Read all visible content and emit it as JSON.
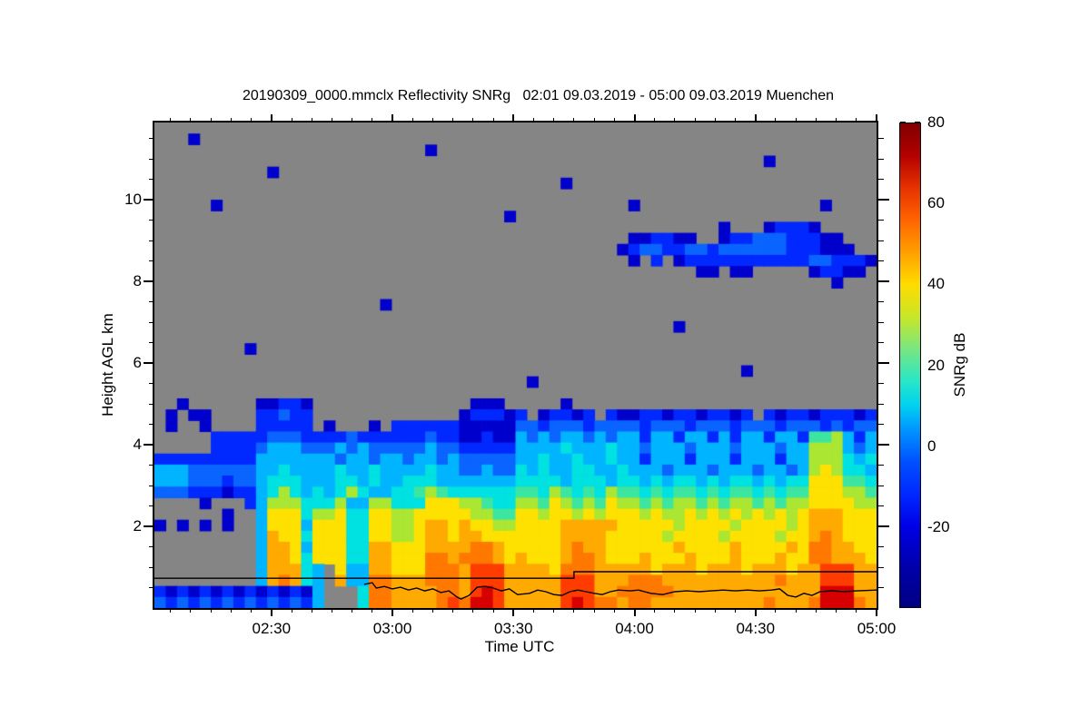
{
  "title": "20190309_0000.mmclx Reflectivity SNRg   02:01 09.03.2019 - 05:00 09.03.2019 Muenchen",
  "site": "Muenchen",
  "time_start": "02:01 09.03.2019",
  "time_end": "05:00 09.03.2019",
  "axes": {
    "x": {
      "label": "Time UTC",
      "ticks": [
        {
          "label": "02:30",
          "minute": 29
        },
        {
          "label": "03:00",
          "minute": 59
        },
        {
          "label": "03:30",
          "minute": 89
        },
        {
          "label": "04:00",
          "minute": 119
        },
        {
          "label": "04:30",
          "minute": 149
        },
        {
          "label": "05:00",
          "minute": 179
        }
      ],
      "total_minutes": 179,
      "minor_step_minutes": 5,
      "first_minor_minute": 4
    },
    "y": {
      "label": "Height AGL km",
      "ticks": [
        2,
        4,
        6,
        8,
        10
      ],
      "range_km": [
        0,
        11.9
      ],
      "minor_step_km": 0.5
    }
  },
  "colorbar": {
    "label": "SNRg dB",
    "tick_labels": [
      "80",
      "60",
      "40",
      "20",
      "0",
      "-20"
    ],
    "tick_values": [
      80,
      60,
      40,
      20,
      0,
      -20
    ],
    "minor_tick_values": [
      70,
      50,
      30,
      10,
      -10,
      -30
    ],
    "range": [
      -40,
      80
    ],
    "gradient": [
      {
        "v": 80,
        "c": "#800000"
      },
      {
        "v": 72,
        "c": "#b40000"
      },
      {
        "v": 64,
        "c": "#e63200"
      },
      {
        "v": 56,
        "c": "#ff6400"
      },
      {
        "v": 48,
        "c": "#ffa000"
      },
      {
        "v": 40,
        "c": "#ffdc00"
      },
      {
        "v": 32,
        "c": "#c8e628"
      },
      {
        "v": 24,
        "c": "#78e682"
      },
      {
        "v": 16,
        "c": "#28e6c8"
      },
      {
        "v": 10,
        "c": "#00d2f0"
      },
      {
        "v": 4,
        "c": "#0096ff"
      },
      {
        "v": -4,
        "c": "#0050ff"
      },
      {
        "v": -12,
        "c": "#0028ff"
      },
      {
        "v": -20,
        "c": "#0000e6"
      },
      {
        "v": -30,
        "c": "#0000aa"
      },
      {
        "v": -40,
        "c": "#000082"
      }
    ]
  },
  "plot": {
    "background": "#858585",
    "frame_color": "#000000"
  },
  "chart_data": {
    "type": "heatmap",
    "variable": "Reflectivity SNRg",
    "value_units": "dB",
    "x_start": "02:01",
    "x_end": "05:00",
    "x_total_minutes": 179,
    "y_range_km": [
      0,
      11.9
    ],
    "no_data_char": ".",
    "palette": {
      ".": {
        "color": "#858585",
        "db": null,
        "label": "no signal"
      },
      "0": {
        "color": "#000080",
        "db": -35
      },
      "1": {
        "color": "#0000cd",
        "db": -25
      },
      "2": {
        "color": "#0028ff",
        "db": -15
      },
      "3": {
        "color": "#0a64ff",
        "db": -5
      },
      "4": {
        "color": "#00b4ff",
        "db": 5
      },
      "5": {
        "color": "#00e1e1",
        "db": 13
      },
      "6": {
        "color": "#3ce6a0",
        "db": 20
      },
      "7": {
        "color": "#aae632",
        "db": 30
      },
      "8": {
        "color": "#ffe100",
        "db": 40
      },
      "9": {
        "color": "#ffaa00",
        "db": 48
      },
      "A": {
        "color": "#ff7800",
        "db": 55
      },
      "B": {
        "color": "#ff3c00",
        "db": 62
      },
      "C": {
        "color": "#d70000",
        "db": 70
      }
    },
    "ncols": 64,
    "nrows": 44,
    "rows": [
      "................................................................",
      "...1............................................................",
      "........................1.......................................",
      "......................................................1.........",
      "..........1.....................................................",
      "....................................1...........................",
      "................................................................",
      ".....1....................................1................1....",
      "...............................1................................",
      "..................................................1...12221.....",
      "..........................................112211..12233322211...",
      ".........................................123322332333333222111..",
      "..........................................1.2.122222222222332221",
      "................................................11.11.....12211.",
      "............................................................1...",
      "................................................................",
      "....................1...........................................",
      "................................................................",
      "..............................................1.................",
      "................................................................",
      "........1.......................................................",
      "................................................................",
      "....................................................1...........",
      ".................................1..............................",
      "................................................................",
      "..1......11221..............111.....1...........................",
      ".1.11....22322.............122212.12212.2112212212212.2122122212",
      ".1..1....22222.1...1.2222221111133233323333233323332333233323233",
      ".....2222233322223222222322112114343443434424424424244244266742 4",
      ".....2222344433343433333433222224444544454434443444344434477743 4",
      "22222222244444443443443443433333445445445442444244424442447775 45",
      "44433333344544445445444454433433545445544544434443444344347875 54",
      "44433323345554445545445554444444555545554554545545455454558886 65",
      "33322212245754545754455676555555665765657665656656566565668887 76",
      "....1...24777555744775558887765577687676877676776767767677888877",
      "......1..488857785588778888877668878878788878778787878787 8999888",
      "1.1.1.1..4888488855887789989887788889999988888788887888878999888",
      ".........49885888558877899899888888899998888878888788887889A9888",
      ".........499848885599888999 9AA9888889A99888888988889888898AA9988",
      ".........49985888559988 8AA9AAA9898889AA9888988898889888988AA9998",
      ".........499954.844998 88AAA9BBB99998AAA99999899989998999899BBB99",
      ".........49A954.944AA999AAA9BBB99999BBB999AAA9999999999A999BBB99",
      "212121212121214...5AA9999AA9BCB99999BBB99AAAAA9999999999999CCC99",
      "323232323232324...5AA9999ABACCB99999BCBAA9AA9999999999A999ACCCA9"
    ],
    "overlay_lines": {
      "description": "black height lines overlaid on the radar image",
      "stepped_line_km": [
        [
          0,
          0.73
        ],
        [
          104,
          0.73
        ],
        [
          104,
          0.89
        ],
        [
          179,
          0.89
        ]
      ],
      "wiggly_line_km": [
        [
          52,
          0.58
        ],
        [
          54,
          0.62
        ],
        [
          55,
          0.49
        ],
        [
          57,
          0.53
        ],
        [
          59,
          0.47
        ],
        [
          61,
          0.51
        ],
        [
          63,
          0.44
        ],
        [
          65,
          0.49
        ],
        [
          67,
          0.42
        ],
        [
          69,
          0.47
        ],
        [
          71,
          0.38
        ],
        [
          73,
          0.42
        ],
        [
          75,
          0.27
        ],
        [
          76,
          0.22
        ],
        [
          78,
          0.31
        ],
        [
          80,
          0.51
        ],
        [
          82,
          0.53
        ],
        [
          84,
          0.49
        ],
        [
          86,
          0.42
        ],
        [
          88,
          0.47
        ],
        [
          90,
          0.33
        ],
        [
          93,
          0.36
        ],
        [
          95,
          0.44
        ],
        [
          97,
          0.4
        ],
        [
          99,
          0.33
        ],
        [
          101,
          0.31
        ],
        [
          103,
          0.4
        ],
        [
          105,
          0.44
        ],
        [
          107,
          0.4
        ],
        [
          109,
          0.36
        ],
        [
          111,
          0.33
        ],
        [
          113,
          0.4
        ],
        [
          115,
          0.44
        ],
        [
          118,
          0.42
        ],
        [
          120,
          0.44
        ],
        [
          123,
          0.36
        ],
        [
          126,
          0.33
        ],
        [
          129,
          0.4
        ],
        [
          132,
          0.42
        ],
        [
          135,
          0.4
        ],
        [
          138,
          0.42
        ],
        [
          141,
          0.44
        ],
        [
          144,
          0.42
        ],
        [
          147,
          0.44
        ],
        [
          150,
          0.42
        ],
        [
          153,
          0.44
        ],
        [
          155,
          0.47
        ],
        [
          157,
          0.31
        ],
        [
          159,
          0.27
        ],
        [
          161,
          0.36
        ],
        [
          163,
          0.31
        ],
        [
          165,
          0.4
        ],
        [
          168,
          0.42
        ],
        [
          171,
          0.4
        ],
        [
          174,
          0.42
        ],
        [
          179,
          0.44
        ]
      ]
    }
  }
}
